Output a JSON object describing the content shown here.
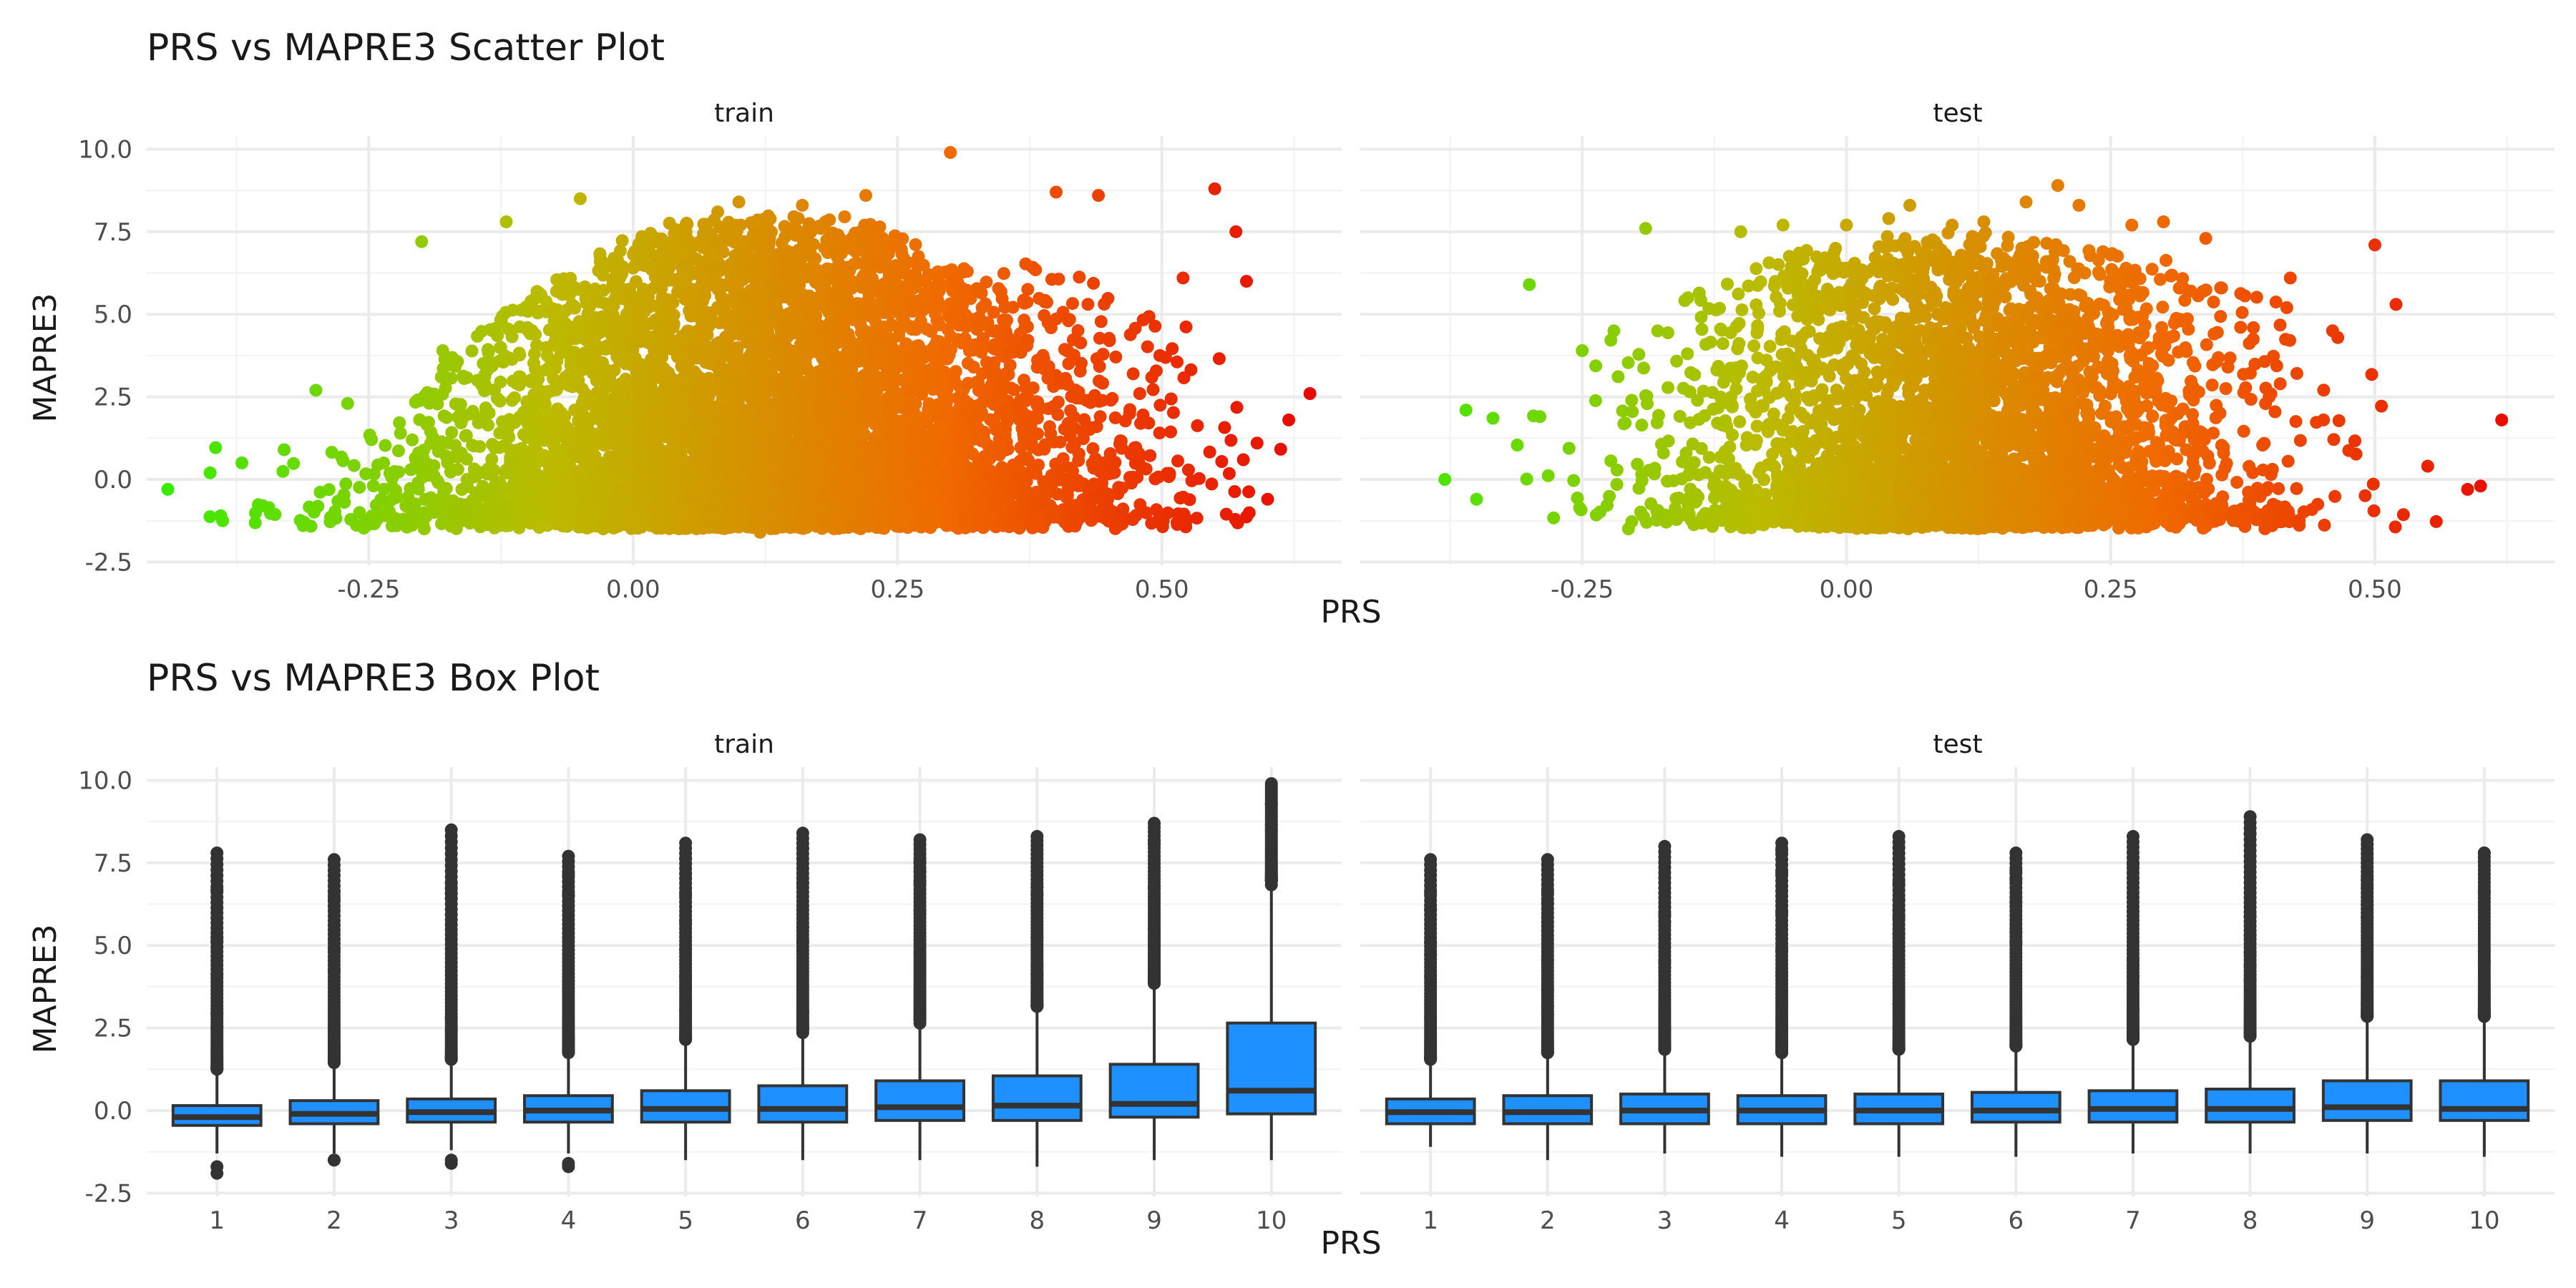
{
  "chart_data": [
    {
      "type": "scatter",
      "title": "PRS vs MAPRE3 Scatter Plot",
      "xlabel": "PRS",
      "ylabel": "MAPRE3",
      "facets": [
        "train",
        "test"
      ],
      "x_ticks": [
        "-0.25",
        "0.00",
        "0.25",
        "0.50"
      ],
      "y_ticks": [
        "-2.5",
        "0.0",
        "2.5",
        "5.0",
        "7.5",
        "10.0"
      ],
      "xlim": [
        -0.46,
        0.67
      ],
      "ylim": [
        -2.6,
        10.4
      ],
      "grid": true,
      "color_gradient": [
        "#33ee00",
        "#bbbb00",
        "#f06a00",
        "#e60000"
      ],
      "series": [
        {
          "facet": "train",
          "x": [
            -0.44,
            -0.4,
            -0.39,
            -0.37,
            -0.35,
            -0.33,
            -0.3,
            -0.27,
            -0.22,
            -0.2,
            -0.18,
            -0.12,
            -0.1,
            -0.05,
            0.0,
            0.05,
            0.08,
            0.1,
            0.12,
            0.16,
            0.22,
            0.3,
            0.33,
            0.4,
            0.44,
            0.48,
            0.52,
            0.55,
            0.57,
            0.58,
            0.59,
            0.6,
            0.62,
            0.64
          ],
          "y": [
            -0.3,
            0.2,
            -1.1,
            0.5,
            -0.8,
            0.9,
            2.7,
            2.3,
            1.4,
            7.2,
            3.9,
            7.8,
            4.6,
            8.5,
            6.4,
            7.5,
            8.1,
            8.4,
            -1.6,
            8.3,
            8.6,
            9.9,
            5.2,
            8.7,
            8.6,
            0.4,
            6.1,
            8.8,
            7.5,
            6.0,
            1.1,
            -0.6,
            1.8,
            2.6
          ]
        },
        {
          "facet": "test",
          "x": [
            -0.38,
            -0.36,
            -0.35,
            -0.3,
            -0.29,
            -0.25,
            -0.22,
            -0.19,
            -0.15,
            -0.1,
            -0.06,
            0.0,
            0.04,
            0.06,
            0.1,
            0.13,
            0.17,
            0.2,
            0.22,
            0.27,
            0.3,
            0.34,
            0.4,
            0.42,
            0.46,
            0.5,
            0.52,
            0.55,
            0.6,
            0.62
          ],
          "y": [
            0.0,
            2.1,
            -0.6,
            5.9,
            1.9,
            3.9,
            4.5,
            7.6,
            5.5,
            7.5,
            7.7,
            7.7,
            7.9,
            8.3,
            7.7,
            7.8,
            8.4,
            8.9,
            8.3,
            7.7,
            7.8,
            7.3,
            2.5,
            6.1,
            4.5,
            7.1,
            5.3,
            0.4,
            -0.2,
            1.8
          ]
        }
      ]
    },
    {
      "type": "box",
      "title": "PRS vs MAPRE3 Box Plot",
      "xlabel": "PRS",
      "ylabel": "MAPRE3",
      "facets": [
        "train",
        "test"
      ],
      "categories": [
        "1",
        "2",
        "3",
        "4",
        "5",
        "6",
        "7",
        "8",
        "9",
        "10"
      ],
      "y_ticks": [
        "-2.5",
        "0.0",
        "2.5",
        "5.0",
        "7.5",
        "10.0"
      ],
      "ylim": [
        -2.6,
        10.4
      ],
      "grid": true,
      "box_color": "#1e90ff",
      "series": [
        {
          "facet": "train",
          "boxes": [
            {
              "q1": -0.45,
              "median": -0.2,
              "q3": 0.15,
              "wlo": -1.3,
              "whi": 1.1,
              "outlier_top": 7.8,
              "outlier_low": -1.9
            },
            {
              "q1": -0.4,
              "median": -0.1,
              "q3": 0.3,
              "wlo": -1.3,
              "whi": 1.3,
              "outlier_top": 7.6,
              "outlier_low": -1.5
            },
            {
              "q1": -0.35,
              "median": -0.05,
              "q3": 0.35,
              "wlo": -1.2,
              "whi": 1.4,
              "outlier_top": 8.5,
              "outlier_low": -1.6
            },
            {
              "q1": -0.35,
              "median": 0.0,
              "q3": 0.45,
              "wlo": -1.3,
              "whi": 1.6,
              "outlier_top": 7.7,
              "outlier_low": -1.7
            },
            {
              "q1": -0.35,
              "median": 0.05,
              "q3": 0.6,
              "wlo": -1.5,
              "whi": 2.0,
              "outlier_top": 8.1,
              "outlier_low": null
            },
            {
              "q1": -0.35,
              "median": 0.05,
              "q3": 0.75,
              "wlo": -1.5,
              "whi": 2.3,
              "outlier_top": 8.4,
              "outlier_low": null
            },
            {
              "q1": -0.3,
              "median": 0.1,
              "q3": 0.9,
              "wlo": -1.5,
              "whi": 2.6,
              "outlier_top": 8.2,
              "outlier_low": null
            },
            {
              "q1": -0.3,
              "median": 0.15,
              "q3": 1.05,
              "wlo": -1.7,
              "whi": 3.0,
              "outlier_top": 8.3,
              "outlier_low": null
            },
            {
              "q1": -0.2,
              "median": 0.2,
              "q3": 1.4,
              "wlo": -1.5,
              "whi": 3.7,
              "outlier_top": 8.7,
              "outlier_low": null
            },
            {
              "q1": -0.1,
              "median": 0.6,
              "q3": 2.65,
              "wlo": -1.5,
              "whi": 6.8,
              "outlier_top": 9.9,
              "outlier_low": null
            }
          ]
        },
        {
          "facet": "test",
          "boxes": [
            {
              "q1": -0.4,
              "median": -0.05,
              "q3": 0.35,
              "wlo": -1.1,
              "whi": 1.4,
              "outlier_top": 7.6,
              "outlier_low": null
            },
            {
              "q1": -0.4,
              "median": -0.05,
              "q3": 0.45,
              "wlo": -1.5,
              "whi": 1.6,
              "outlier_top": 7.6,
              "outlier_low": null
            },
            {
              "q1": -0.4,
              "median": 0.0,
              "q3": 0.5,
              "wlo": -1.3,
              "whi": 1.7,
              "outlier_top": 8.0,
              "outlier_low": null
            },
            {
              "q1": -0.4,
              "median": 0.0,
              "q3": 0.45,
              "wlo": -1.4,
              "whi": 1.6,
              "outlier_top": 8.1,
              "outlier_low": null
            },
            {
              "q1": -0.4,
              "median": 0.0,
              "q3": 0.5,
              "wlo": -1.4,
              "whi": 1.7,
              "outlier_top": 8.3,
              "outlier_low": null
            },
            {
              "q1": -0.35,
              "median": 0.0,
              "q3": 0.55,
              "wlo": -1.4,
              "whi": 1.8,
              "outlier_top": 7.8,
              "outlier_low": null
            },
            {
              "q1": -0.35,
              "median": 0.05,
              "q3": 0.6,
              "wlo": -1.3,
              "whi": 2.0,
              "outlier_top": 8.3,
              "outlier_low": null
            },
            {
              "q1": -0.35,
              "median": 0.05,
              "q3": 0.65,
              "wlo": -1.3,
              "whi": 2.1,
              "outlier_top": 8.9,
              "outlier_low": null
            },
            {
              "q1": -0.3,
              "median": 0.1,
              "q3": 0.9,
              "wlo": -1.3,
              "whi": 2.7,
              "outlier_top": 8.2,
              "outlier_low": null
            },
            {
              "q1": -0.3,
              "median": 0.05,
              "q3": 0.9,
              "wlo": -1.4,
              "whi": 2.7,
              "outlier_top": 7.8,
              "outlier_low": null
            }
          ]
        }
      ]
    }
  ]
}
